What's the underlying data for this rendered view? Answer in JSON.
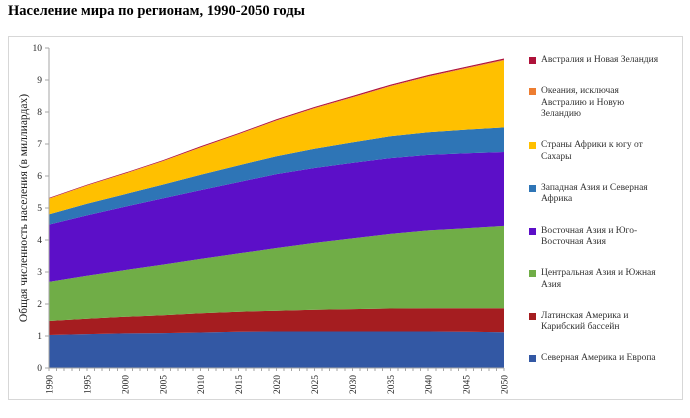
{
  "title": "Население мира по регионам, 1990-2050 годы",
  "chart_data": {
    "type": "area",
    "stacked": true,
    "title": "Население мира по регионам, 1990-2050 годы",
    "xlabel": "",
    "ylabel": "Общая численность населения (в миллиардах)",
    "x": [
      1990,
      1995,
      2000,
      2005,
      2010,
      2015,
      2020,
      2025,
      2030,
      2035,
      2040,
      2045,
      2050
    ],
    "x_tick_labels": [
      "1990",
      "1995",
      "2000",
      "2005",
      "2010",
      "2015",
      "2020",
      "2025",
      "2030",
      "2035",
      "2040",
      "2045",
      "2050"
    ],
    "x_minor_tick_every_years": 1,
    "ylim": [
      0,
      10
    ],
    "ytick_step": 1,
    "grid": false,
    "legend_position": "right",
    "legend_note": "legend lists series from top of stack to bottom",
    "axis_color": "#a6a6a6",
    "tick_label_color": "#262626",
    "series_stack_order": "bottom to top",
    "series": [
      {
        "id": "north-america-europe",
        "name": "Северная Америка и Европа",
        "color": "#3358a4",
        "values": [
          1.03,
          1.06,
          1.08,
          1.09,
          1.11,
          1.13,
          1.14,
          1.14,
          1.14,
          1.14,
          1.14,
          1.13,
          1.12
        ]
      },
      {
        "id": "latin-america-caribbean",
        "name": "Латинская Америка и Карибский бассейн",
        "color": "#a51d20",
        "values": [
          0.44,
          0.48,
          0.52,
          0.56,
          0.6,
          0.63,
          0.65,
          0.68,
          0.7,
          0.72,
          0.73,
          0.74,
          0.75
        ]
      },
      {
        "id": "central-south-asia",
        "name": "Центральная Азия и Южная Азия",
        "color": "#70ad47",
        "values": [
          1.22,
          1.34,
          1.46,
          1.58,
          1.7,
          1.82,
          1.96,
          2.09,
          2.21,
          2.33,
          2.43,
          2.5,
          2.57
        ]
      },
      {
        "id": "east-southeast-asia",
        "name": "Восточная Азия и Юго-Восточная Азия",
        "color": "#5c0fc8",
        "values": [
          1.79,
          1.89,
          1.98,
          2.07,
          2.15,
          2.23,
          2.31,
          2.34,
          2.36,
          2.37,
          2.36,
          2.34,
          2.31
        ]
      },
      {
        "id": "west-asia-north-africa",
        "name": "Западная Азия и Северная Африка",
        "color": "#2e75b6",
        "values": [
          0.32,
          0.36,
          0.39,
          0.43,
          0.48,
          0.52,
          0.56,
          0.6,
          0.64,
          0.68,
          0.71,
          0.74,
          0.77
        ]
      },
      {
        "id": "sub-saharan-africa",
        "name": "Страны Африки к югу от Сахары",
        "color": "#ffc000",
        "values": [
          0.49,
          0.57,
          0.64,
          0.73,
          0.85,
          0.97,
          1.11,
          1.26,
          1.4,
          1.56,
          1.73,
          1.91,
          2.09
        ]
      },
      {
        "id": "oceania-excluding-anz",
        "name": "Океания, исключая Австралию и Новую Зеландию",
        "color": "#ed7d31",
        "values": [
          0.006,
          0.007,
          0.008,
          0.009,
          0.01,
          0.011,
          0.013,
          0.014,
          0.015,
          0.017,
          0.018,
          0.019,
          0.023
        ]
      },
      {
        "id": "australia-new-zealand",
        "name": "Австралия и Новая Зеландия",
        "color": "#ae123a",
        "values": [
          0.02,
          0.022,
          0.023,
          0.024,
          0.027,
          0.029,
          0.031,
          0.032,
          0.034,
          0.035,
          0.037,
          0.038,
          0.039
        ]
      }
    ]
  }
}
